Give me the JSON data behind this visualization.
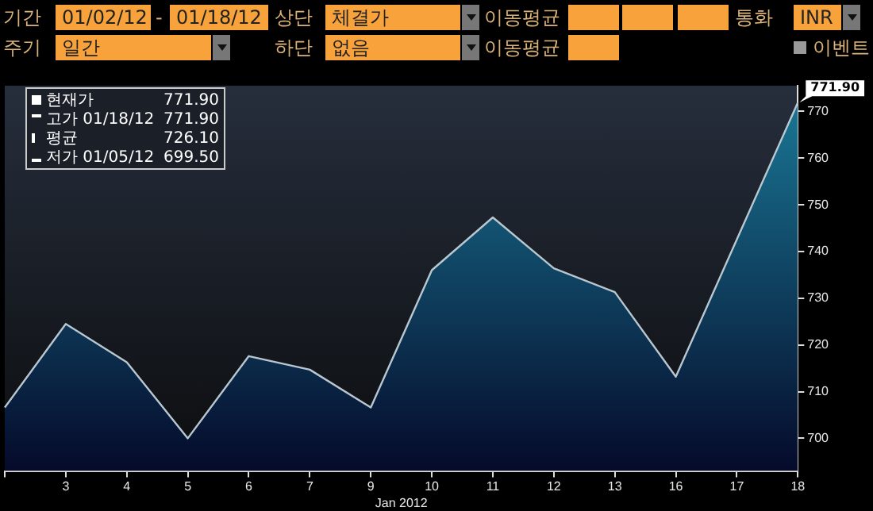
{
  "chart_data": {
    "type": "area",
    "xlabel": "Jan 2012",
    "categories": [
      null,
      "3",
      "4",
      "5",
      "6",
      "7",
      "9",
      "10",
      "11",
      "12",
      "13",
      "16",
      "17",
      "18"
    ],
    "series": [
      {
        "color": "#1a7a98",
        "values": [
          706.6,
          724.5,
          716.3,
          700.0,
          717.6,
          714.7,
          706.6,
          736.0,
          747.3,
          736.4,
          731.3,
          713.2,
          742.6,
          771.9
        ]
      }
    ],
    "ylim": [
      693,
      775.5
    ],
    "yticks": [
      700,
      710,
      720,
      730,
      740,
      750,
      760,
      770
    ],
    "grid": false,
    "legend": false,
    "marker": "none",
    "line_style": "solid",
    "annotations": [
      "기간",
      "01/02/12",
      "-",
      "01/18/12",
      "상단",
      "체결가",
      "이동평균",
      "통화",
      "INR",
      "주기",
      "일간",
      "하단",
      "없음",
      "이동평균",
      "이벤트",
      "현재가",
      "771.90",
      "고가 01/18/12",
      "771.90",
      "평균",
      "726.10",
      "저가 01/05/12",
      "699.50",
      {
        "text": "771.90",
        "x": "18",
        "y": 771.9
      }
    ]
  }
}
